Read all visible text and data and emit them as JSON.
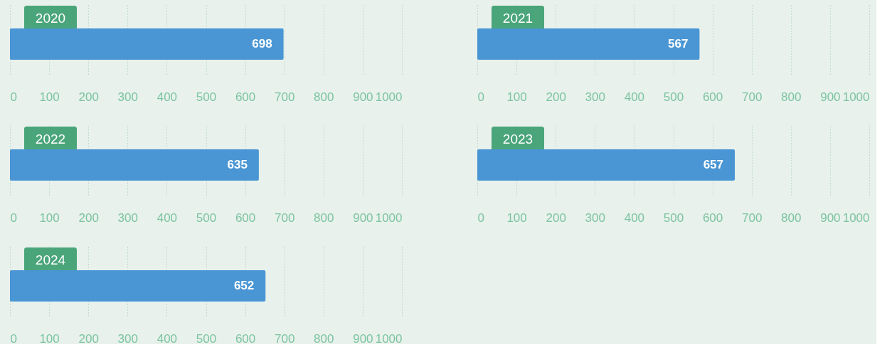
{
  "chart_data": [
    {
      "type": "bar",
      "orientation": "horizontal",
      "title": "2020",
      "categories": [
        null
      ],
      "values": [
        698
      ],
      "color": "#4a96d4",
      "xlim": [
        0,
        1000
      ],
      "xticks": [
        0,
        100,
        200,
        300,
        400,
        500,
        600,
        700,
        800,
        900,
        1000
      ],
      "grid": "x",
      "data_labels": true
    },
    {
      "type": "bar",
      "orientation": "horizontal",
      "title": "2021",
      "categories": [
        null
      ],
      "values": [
        567
      ],
      "color": "#4a96d4",
      "xlim": [
        0,
        1000
      ],
      "xticks": [
        0,
        100,
        200,
        300,
        400,
        500,
        600,
        700,
        800,
        900,
        1000
      ],
      "grid": "x",
      "data_labels": true
    },
    {
      "type": "bar",
      "orientation": "horizontal",
      "title": "2022",
      "categories": [
        null
      ],
      "values": [
        635
      ],
      "color": "#4a96d4",
      "xlim": [
        0,
        1000
      ],
      "xticks": [
        0,
        100,
        200,
        300,
        400,
        500,
        600,
        700,
        800,
        900,
        1000
      ],
      "grid": "x",
      "data_labels": true
    },
    {
      "type": "bar",
      "orientation": "horizontal",
      "title": "2023",
      "categories": [
        null
      ],
      "values": [
        657
      ],
      "color": "#4a96d4",
      "xlim": [
        0,
        1000
      ],
      "xticks": [
        0,
        100,
        200,
        300,
        400,
        500,
        600,
        700,
        800,
        900,
        1000
      ],
      "grid": "x",
      "data_labels": true
    },
    {
      "type": "bar",
      "orientation": "horizontal",
      "title": "2024",
      "categories": [
        null
      ],
      "values": [
        652
      ],
      "color": "#4a96d4",
      "xlim": [
        0,
        1000
      ],
      "xticks": [
        0,
        100,
        200,
        300,
        400,
        500,
        600,
        700,
        800,
        900,
        1000
      ],
      "grid": "x",
      "data_labels": true
    }
  ]
}
